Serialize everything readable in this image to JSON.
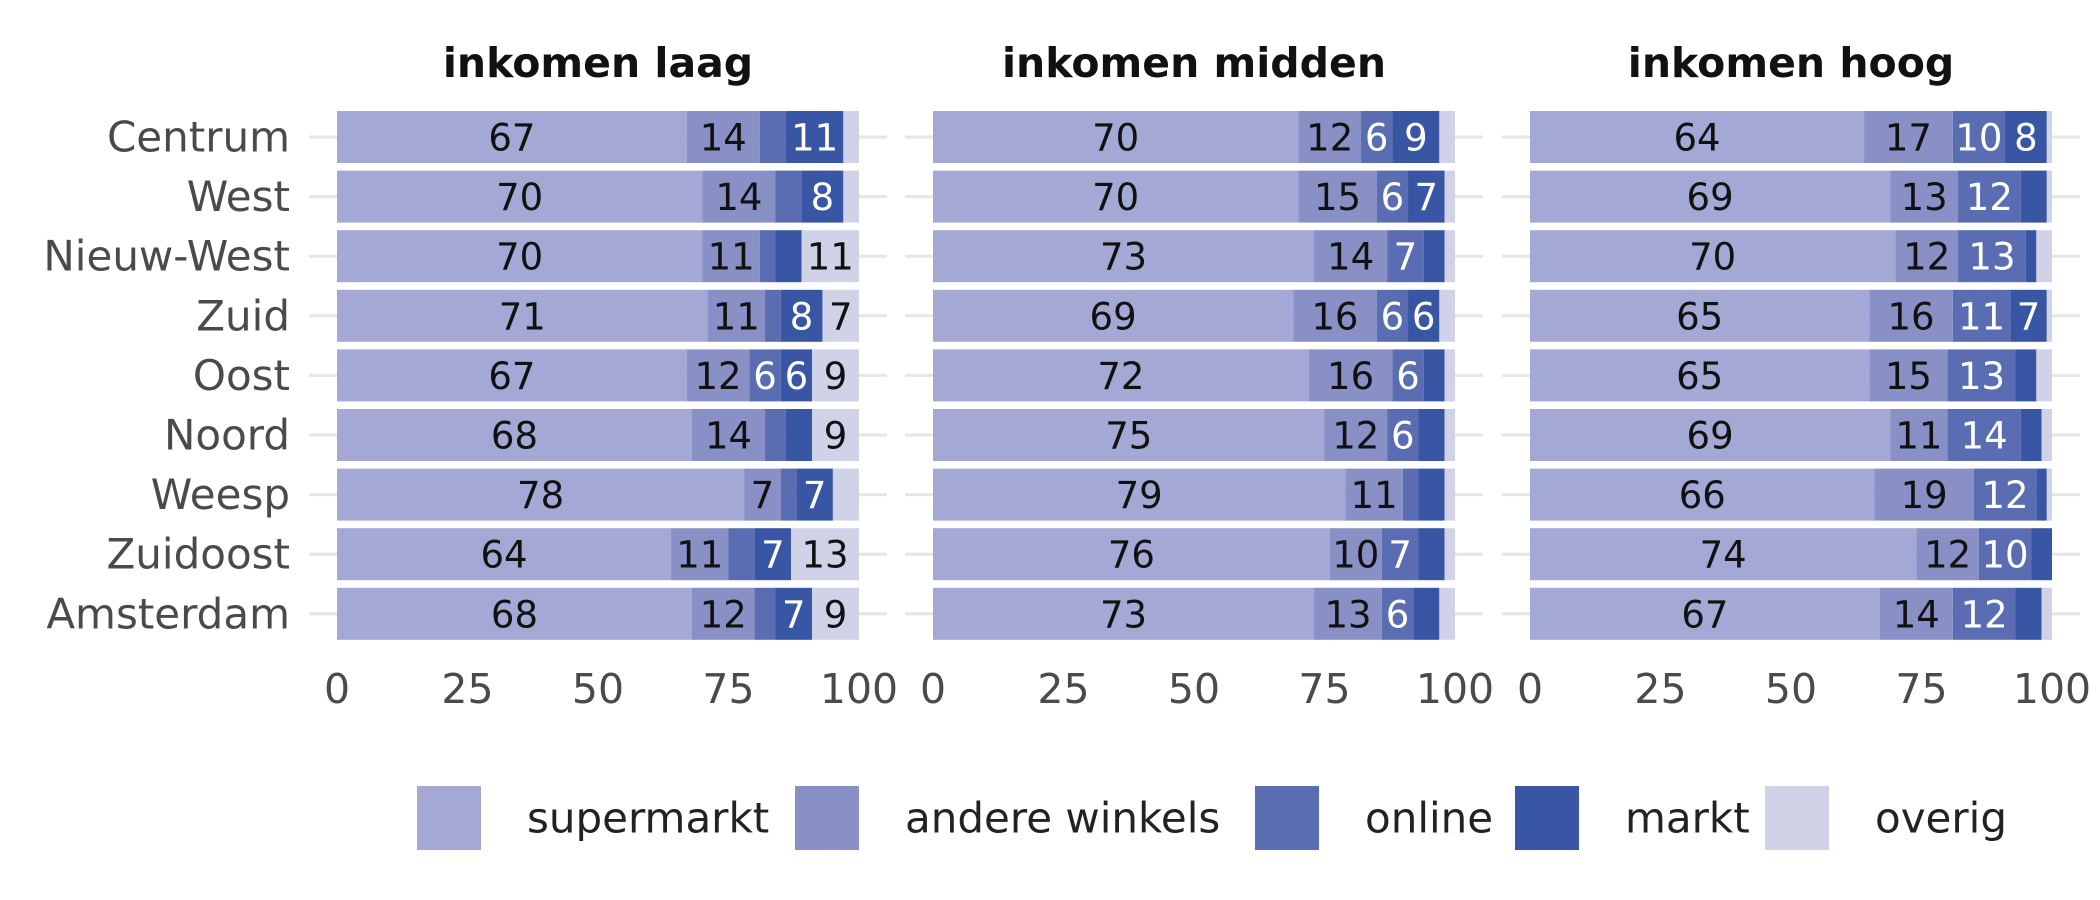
{
  "chart_data": {
    "type": "bar",
    "orientation": "horizontal",
    "stacked": true,
    "categories": [
      "Centrum",
      "West",
      "Nieuw-West",
      "Zuid",
      "Oost",
      "Noord",
      "Weesp",
      "Zuidoost",
      "Amsterdam"
    ],
    "xlim": [
      0,
      100
    ],
    "x_ticks": [
      "0",
      "25",
      "50",
      "75",
      "100"
    ],
    "grid": true,
    "legend_position": "bottom",
    "series": [
      {
        "name": "supermarkt",
        "color": "#a3a8d4",
        "label_color": "#111111"
      },
      {
        "name": "andere winkels",
        "color": "#8890c6",
        "label_color": "#111111"
      },
      {
        "name": "online",
        "color": "#5a6db3",
        "label_color": "#ffffff"
      },
      {
        "name": "markt",
        "color": "#3856a3",
        "label_color": "#ffffff"
      },
      {
        "name": "overig",
        "color": "#d0d3e8",
        "label_color": "#111111"
      }
    ],
    "facets": [
      {
        "title": "inkomen laag",
        "values": [
          [
            67,
            14,
            5,
            11,
            3
          ],
          [
            70,
            14,
            5,
            8,
            3
          ],
          [
            70,
            11,
            3,
            5,
            11
          ],
          [
            71,
            11,
            3,
            8,
            7
          ],
          [
            67,
            12,
            6,
            6,
            9
          ],
          [
            68,
            14,
            4,
            5,
            9
          ],
          [
            78,
            7,
            3,
            7,
            5
          ],
          [
            64,
            11,
            5,
            7,
            13
          ],
          [
            68,
            12,
            4,
            7,
            9
          ]
        ],
        "labels": [
          [
            "67",
            "14",
            "",
            "11",
            ""
          ],
          [
            "70",
            "14",
            "",
            "8",
            ""
          ],
          [
            "70",
            "11",
            "",
            "",
            "11"
          ],
          [
            "71",
            "11",
            "",
            "8",
            "7"
          ],
          [
            "67",
            "12",
            "6",
            "6",
            "9"
          ],
          [
            "68",
            "14",
            "",
            "",
            "9"
          ],
          [
            "78",
            "7",
            "",
            "7",
            ""
          ],
          [
            "64",
            "11",
            "",
            "7",
            "13"
          ],
          [
            "68",
            "12",
            "",
            "7",
            "9"
          ]
        ]
      },
      {
        "title": "inkomen midden",
        "values": [
          [
            70,
            12,
            6,
            9,
            3
          ],
          [
            70,
            15,
            6,
            7,
            2
          ],
          [
            73,
            14,
            7,
            4,
            2
          ],
          [
            69,
            16,
            6,
            6,
            3
          ],
          [
            72,
            16,
            6,
            4,
            2
          ],
          [
            75,
            12,
            6,
            5,
            2
          ],
          [
            79,
            11,
            3,
            5,
            2
          ],
          [
            76,
            10,
            7,
            5,
            2
          ],
          [
            73,
            13,
            6,
            5,
            3
          ]
        ],
        "labels": [
          [
            "70",
            "12",
            "6",
            "9",
            ""
          ],
          [
            "70",
            "15",
            "6",
            "7",
            ""
          ],
          [
            "73",
            "14",
            "7",
            "",
            ""
          ],
          [
            "69",
            "16",
            "6",
            "6",
            ""
          ],
          [
            "72",
            "16",
            "6",
            "",
            ""
          ],
          [
            "75",
            "12",
            "6",
            "",
            ""
          ],
          [
            "79",
            "11",
            "",
            "",
            ""
          ],
          [
            "76",
            "10",
            "7",
            "",
            ""
          ],
          [
            "73",
            "13",
            "6",
            "",
            ""
          ]
        ]
      },
      {
        "title": "inkomen hoog",
        "values": [
          [
            64,
            17,
            10,
            8,
            1
          ],
          [
            69,
            13,
            12,
            5,
            1
          ],
          [
            70,
            12,
            13,
            2,
            3
          ],
          [
            65,
            16,
            11,
            7,
            1
          ],
          [
            65,
            15,
            13,
            4,
            3
          ],
          [
            69,
            11,
            14,
            4,
            2
          ],
          [
            66,
            19,
            12,
            2,
            1
          ],
          [
            74,
            12,
            10,
            4,
            0
          ],
          [
            67,
            14,
            12,
            5,
            2
          ]
        ],
        "labels": [
          [
            "64",
            "17",
            "10",
            "8",
            ""
          ],
          [
            "69",
            "13",
            "12",
            "",
            ""
          ],
          [
            "70",
            "12",
            "13",
            "",
            ""
          ],
          [
            "65",
            "16",
            "11",
            "7",
            ""
          ],
          [
            "65",
            "15",
            "13",
            "",
            ""
          ],
          [
            "69",
            "11",
            "14",
            "",
            ""
          ],
          [
            "66",
            "19",
            "12",
            "",
            ""
          ],
          [
            "74",
            "12",
            "10",
            "",
            ""
          ],
          [
            "67",
            "14",
            "12",
            "",
            ""
          ]
        ]
      }
    ]
  }
}
